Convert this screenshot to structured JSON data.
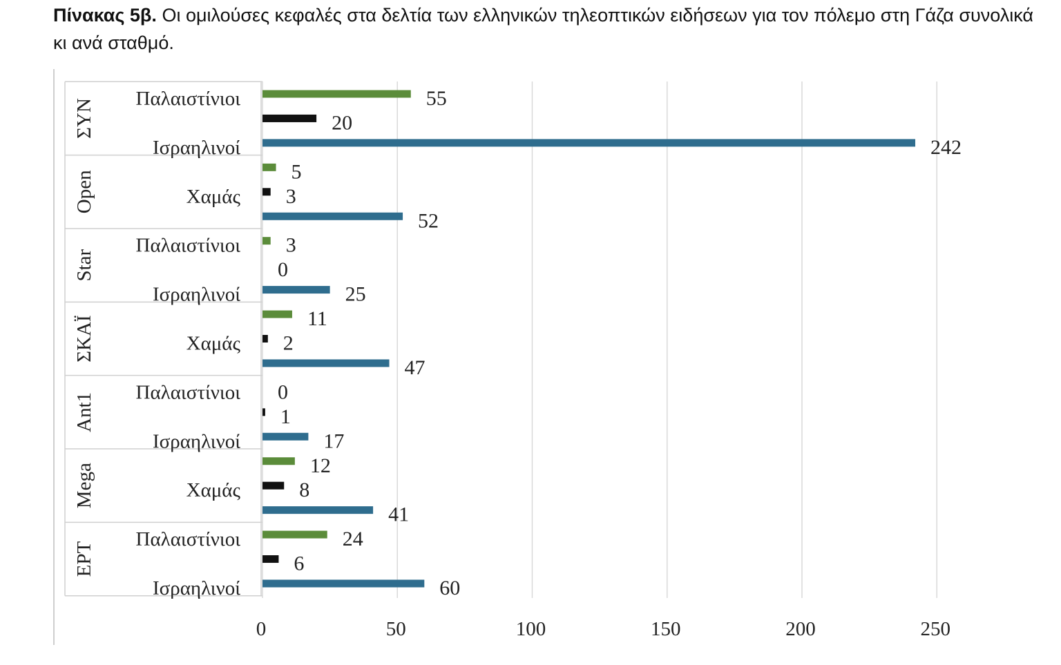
{
  "caption": {
    "lead": "Πίνακας 5β.",
    "text": "Οι ομιλούσες κεφαλές στα δελτία των ελληνικών τηλεοπτικών ειδήσεων για τον πόλεμο στη Γάζα συνολικά κι ανά σταθμό."
  },
  "chart_data": {
    "type": "bar",
    "orientation": "horizontal",
    "title": "",
    "xlabel": "",
    "ylabel": "",
    "xlim": [
      0,
      250
    ],
    "x_ticks": [
      "0",
      "50",
      "100",
      "150",
      "200",
      "250"
    ],
    "grid": "vertical",
    "legend": "none",
    "groups": [
      {
        "label": "ΣΥΝ",
        "categories": [
          "Παλαιστίνιοι",
          "Χαμάς",
          "Ισραηλινοί"
        ],
        "category_labels_shown": [
          "Παλαιστίνιοι",
          "",
          "Ισραηλινοί"
        ],
        "values": [
          55,
          20,
          242
        ]
      },
      {
        "label": "Open",
        "categories": [
          "Παλαιστίνιοι",
          "Χαμάς",
          "Ισραηλινοί"
        ],
        "category_labels_shown": [
          "",
          "Χαμάς",
          ""
        ],
        "values": [
          5,
          3,
          52
        ]
      },
      {
        "label": "Star",
        "categories": [
          "Παλαιστίνιοι",
          "Χαμάς",
          "Ισραηλινοί"
        ],
        "category_labels_shown": [
          "Παλαιστίνιοι",
          "",
          "Ισραηλινοί"
        ],
        "values": [
          3,
          0,
          25
        ]
      },
      {
        "label": "ΣΚΑΪ",
        "categories": [
          "Παλαιστίνιοι",
          "Χαμάς",
          "Ισραηλινοί"
        ],
        "category_labels_shown": [
          "",
          "Χαμάς",
          ""
        ],
        "values": [
          11,
          2,
          47
        ]
      },
      {
        "label": "Ant1",
        "categories": [
          "Παλαιστίνιοι",
          "Χαμάς",
          "Ισραηλινοί"
        ],
        "category_labels_shown": [
          "Παλαιστίνιοι",
          "",
          "Ισραηλινοί"
        ],
        "values": [
          0,
          1,
          17
        ]
      },
      {
        "label": "Mega",
        "categories": [
          "Παλαιστίνιοι",
          "Χαμάς",
          "Ισραηλινοί"
        ],
        "category_labels_shown": [
          "",
          "Χαμάς",
          ""
        ],
        "values": [
          12,
          8,
          41
        ]
      },
      {
        "label": "ΕΡΤ",
        "categories": [
          "Παλαιστίνιοι",
          "Χαμάς",
          "Ισραηλινοί"
        ],
        "category_labels_shown": [
          "Παλαιστίνιοι",
          "",
          "Ισραηλινοί"
        ],
        "values": [
          24,
          6,
          60
        ]
      }
    ],
    "category_colors": {
      "Παλαιστίνιοι": "#5b8c3a",
      "Χαμάς": "#111111",
      "Ισραηλινοί": "#2f6d8e"
    }
  }
}
